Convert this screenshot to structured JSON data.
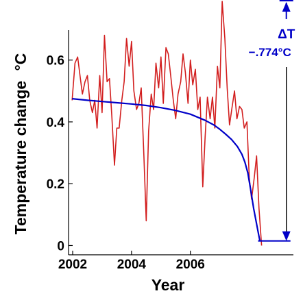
{
  "chart_data": {
    "type": "line",
    "title": "",
    "xlabel": "Year",
    "ylabel": "Temperature change °C",
    "ylabel_text": "Temperature change",
    "ylabel_unit": "°C",
    "xlim": [
      2001.86,
      2009.5
    ],
    "ylim": [
      -0.03,
      0.75
    ],
    "x_ticks": [
      2002,
      2004,
      2006
    ],
    "x_tick_labels": [
      "2002",
      "2004",
      "2006"
    ],
    "y_ticks": [
      0,
      0.2,
      0.4,
      0.6
    ],
    "y_tick_labels": [
      "0",
      "0.2",
      "0.4",
      "0.6"
    ],
    "grid": false,
    "series": [
      {
        "color": "#d21e1e",
        "x": [
          2001.98,
          2002.08,
          2002.17,
          2002.25,
          2002.33,
          2002.42,
          2002.5,
          2002.58,
          2002.67,
          2002.75,
          2002.83,
          2002.92,
          2003.0,
          2003.08,
          2003.17,
          2003.25,
          2003.33,
          2003.42,
          2003.5,
          2003.58,
          2003.67,
          2003.75,
          2003.83,
          2003.92,
          2004.0,
          2004.08,
          2004.17,
          2004.25,
          2004.33,
          2004.42,
          2004.5,
          2004.58,
          2004.67,
          2004.75,
          2004.83,
          2004.92,
          2005.0,
          2005.08,
          2005.17,
          2005.25,
          2005.33,
          2005.42,
          2005.5,
          2005.58,
          2005.67,
          2005.75,
          2005.83,
          2005.92,
          2006.0,
          2006.08,
          2006.17,
          2006.25,
          2006.33,
          2006.42,
          2006.5,
          2006.58,
          2006.67,
          2006.75,
          2006.83,
          2006.92,
          2007.0,
          2007.08,
          2007.17,
          2007.25,
          2007.33,
          2007.42,
          2007.5,
          2007.58,
          2007.67,
          2007.75,
          2007.83,
          2007.92,
          2008.0,
          2008.08,
          2008.17,
          2008.25,
          2008.33,
          2008.42
        ],
        "values": [
          0.47,
          0.59,
          0.61,
          0.55,
          0.49,
          0.53,
          0.55,
          0.47,
          0.43,
          0.47,
          0.38,
          0.55,
          0.43,
          0.68,
          0.53,
          0.54,
          0.42,
          0.26,
          0.38,
          0.38,
          0.47,
          0.53,
          0.67,
          0.58,
          0.66,
          0.5,
          0.44,
          0.46,
          0.51,
          0.29,
          0.08,
          0.37,
          0.49,
          0.44,
          0.59,
          0.51,
          0.61,
          0.46,
          0.64,
          0.62,
          0.55,
          0.47,
          0.41,
          0.49,
          0.53,
          0.62,
          0.56,
          0.46,
          0.6,
          0.52,
          0.57,
          0.44,
          0.48,
          0.19,
          0.35,
          0.48,
          0.41,
          0.48,
          0.38,
          0.58,
          0.51,
          0.79,
          0.67,
          0.51,
          0.39,
          0.45,
          0.5,
          0.41,
          0.45,
          0.44,
          0.38,
          0.4,
          0.22,
          0.15,
          0.22,
          0.29,
          0.12,
          0.0
        ]
      },
      {
        "color": "#0000c8",
        "x": [
          2001.98,
          2002.5,
          2003.0,
          2003.5,
          2004.0,
          2004.5,
          2005.0,
          2005.5,
          2006.0,
          2006.5,
          2006.8,
          2007.0,
          2007.2,
          2007.4,
          2007.6,
          2007.75,
          2007.85,
          2007.95,
          2008.05,
          2008.15,
          2008.25,
          2008.32,
          2008.36
        ],
        "values": [
          0.475,
          0.47,
          0.466,
          0.462,
          0.458,
          0.453,
          0.446,
          0.437,
          0.425,
          0.405,
          0.39,
          0.376,
          0.36,
          0.343,
          0.32,
          0.295,
          0.27,
          0.235,
          0.18,
          0.12,
          0.07,
          0.035,
          0.015
        ]
      }
    ],
    "baseline": {
      "value": 0.015,
      "x_start": 2008.3,
      "x_end": 2009.4
    },
    "annotation": {
      "delta_label": "ΔT",
      "delta_value": "−.774°C",
      "color": "#0000c8",
      "top_value": 0.79,
      "bottom_value": 0.015,
      "x": 2009.26
    }
  }
}
